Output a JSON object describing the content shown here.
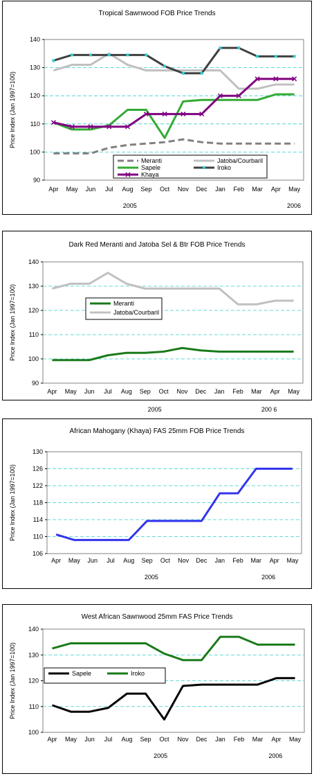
{
  "chart_data": [
    {
      "type": "line",
      "title": "Tropical Sawnwood FOB Price Trends",
      "ylabel": "Price Index (Jan 1997=100)",
      "xlabel": "",
      "categories": [
        "Apr",
        "May",
        "Jun",
        "Jul",
        "Aug",
        "Sep",
        "Oct",
        "Nov",
        "Dec",
        "Jan",
        "Feb",
        "Mar",
        "Apr",
        "May"
      ],
      "year_labels": [
        "2005",
        "2006"
      ],
      "ylim": [
        90,
        140
      ],
      "yticks": [
        90,
        100,
        110,
        120,
        130,
        140
      ],
      "grid": true,
      "legend_position": "bottom-right",
      "series": [
        {
          "name": "Meranti",
          "color": "#808080",
          "style": "dashed",
          "marker": "none",
          "values": [
            99.5,
            99.5,
            99.5,
            101.5,
            102.5,
            103,
            103.5,
            104.5,
            103.5,
            103,
            103,
            103,
            103,
            103
          ]
        },
        {
          "name": "Jatoba/Courbaril",
          "color": "#c0c0c0",
          "style": "solid",
          "marker": "none",
          "values": [
            129,
            131,
            131,
            135,
            131,
            129,
            129,
            129,
            129,
            129,
            122.5,
            122.5,
            124,
            124
          ]
        },
        {
          "name": "Sapele",
          "color": "#33aa33",
          "style": "solid",
          "marker": "none",
          "values": [
            110.5,
            108,
            108,
            109.5,
            115,
            115,
            105,
            118,
            118.5,
            118.5,
            118.5,
            118.5,
            120.5,
            120.5
          ]
        },
        {
          "name": "Iroko",
          "color": "#404040",
          "style": "solid",
          "marker": "square-cyan",
          "values": [
            132.5,
            134.5,
            134.5,
            134.5,
            134.5,
            134.5,
            130.5,
            128,
            128,
            137,
            137,
            134,
            134,
            134
          ]
        },
        {
          "name": "Khaya",
          "color": "#800080",
          "style": "solid",
          "marker": "x",
          "values": [
            110.5,
            109,
            109,
            109,
            109,
            113.5,
            113.5,
            113.5,
            113.5,
            120,
            120,
            126,
            126,
            126
          ]
        }
      ]
    },
    {
      "type": "line",
      "title": "Dark Red Meranti and Jatoba Sel & Btr FOB Price Trends",
      "ylabel": "Price Index (Jan 1997=100)",
      "xlabel": "",
      "categories": [
        "Apr",
        "May",
        "Jun",
        "Jul",
        "Aug",
        "Sep",
        "Oct",
        "Nov",
        "Dec",
        "Jan",
        "Feb",
        "Mar",
        "Apr",
        "May"
      ],
      "year_labels": [
        "2005",
        "200 6"
      ],
      "ylim": [
        90,
        140
      ],
      "yticks": [
        90,
        100,
        110,
        120,
        130,
        140
      ],
      "grid": true,
      "legend_position": "middle-left",
      "series": [
        {
          "name": "Meranti",
          "color": "#1a7a1a",
          "style": "solid",
          "marker": "none",
          "values": [
            99.5,
            99.5,
            99.5,
            101.5,
            102.5,
            102.5,
            103,
            104.5,
            103.5,
            103,
            103,
            103,
            103,
            103
          ]
        },
        {
          "name": "Jatoba/Courbaril",
          "color": "#c0c0c0",
          "style": "solid",
          "marker": "none",
          "values": [
            129,
            131,
            131,
            135.5,
            131,
            129,
            129,
            129,
            129,
            129,
            122.5,
            122.5,
            124,
            124
          ]
        }
      ]
    },
    {
      "type": "line",
      "title": "African Mahogany (Khaya) FAS 25mm FOB Price Trends",
      "ylabel": "Price Index (Jan 1997=100)",
      "xlabel": "",
      "categories": [
        "Apr",
        "May",
        "Jun",
        "Jul",
        "Aug",
        "Sep",
        "Oct",
        "Nov",
        "Dec",
        "Jan",
        "Feb",
        "Mar",
        "Apr",
        "May"
      ],
      "year_labels": [
        "2005",
        "2006"
      ],
      "ylim": [
        106,
        130
      ],
      "yticks": [
        106,
        110,
        114,
        118,
        122,
        126,
        130
      ],
      "grid": true,
      "legend_position": "none",
      "series": [
        {
          "name": "",
          "color": "#3333ee",
          "style": "solid",
          "marker": "none",
          "values": [
            110.5,
            109.2,
            109.2,
            109.2,
            109.2,
            113.7,
            113.7,
            113.7,
            113.7,
            120.2,
            120.2,
            126,
            126,
            126
          ]
        }
      ]
    },
    {
      "type": "line",
      "title": "West African Sawnwood 25mm FAS Price Trends",
      "ylabel": "Price Index (Jan 1997=100)",
      "xlabel": "",
      "categories": [
        "Apr",
        "May",
        "Jun",
        "Jul",
        "Aug",
        "Sep",
        "Oct",
        "Nov",
        "Dec",
        "Jan",
        "Feb",
        "Mar",
        "Apr",
        "May"
      ],
      "year_labels": [
        "2005",
        "2006"
      ],
      "ylim": [
        100,
        140
      ],
      "yticks": [
        100,
        110,
        120,
        130,
        140
      ],
      "grid": true,
      "legend_position": "middle-left",
      "series": [
        {
          "name": "Sapele",
          "color": "#000000",
          "style": "solid",
          "marker": "none",
          "values": [
            110.5,
            108,
            108,
            109.5,
            115,
            115,
            105,
            118,
            118.5,
            118.5,
            118.5,
            118.5,
            121,
            121
          ]
        },
        {
          "name": "Iroko",
          "color": "#1a7a1a",
          "style": "solid",
          "marker": "none",
          "values": [
            132.5,
            134.5,
            134.5,
            134.5,
            134.5,
            134.5,
            130.5,
            128,
            128,
            137,
            137,
            134,
            134,
            134
          ]
        }
      ]
    }
  ]
}
